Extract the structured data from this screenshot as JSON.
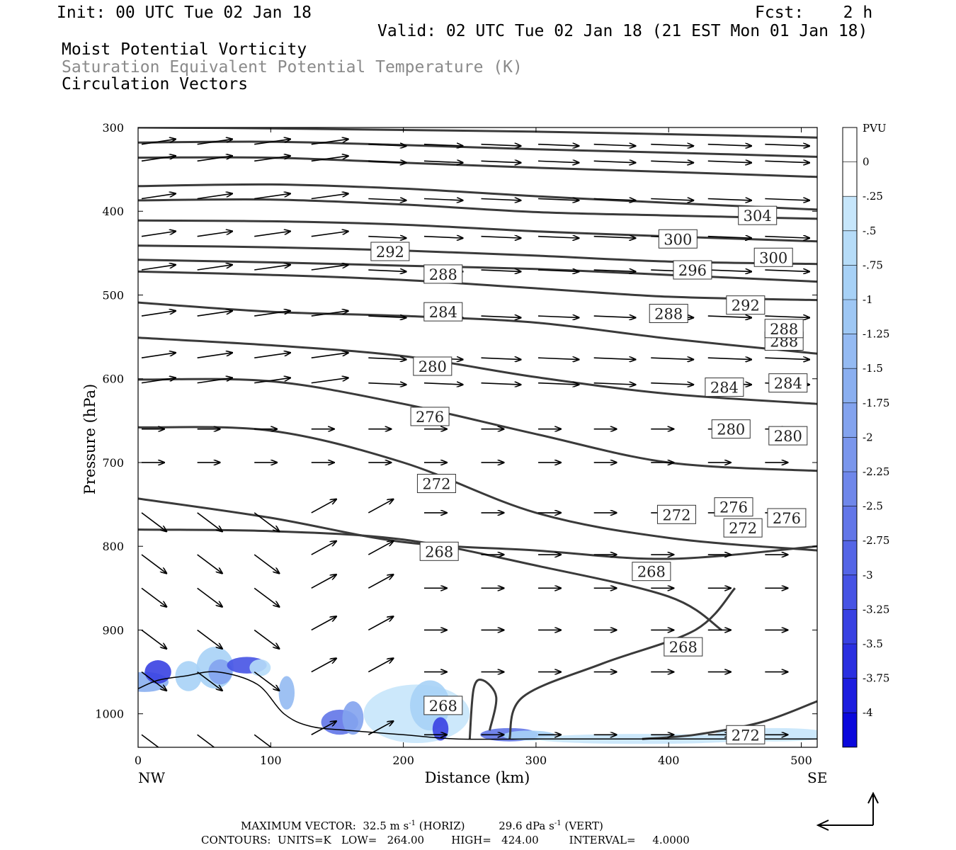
{
  "header": {
    "init": "Init: 00 UTC Tue 02 Jan 18",
    "fcst": "Fcst:    2 h",
    "valid": "Valid: 02 UTC Tue 02 Jan 18 (21 EST Mon 01 Jan 18)",
    "field1": "Moist Potential Vorticity",
    "field2": "Saturation Equivalent Potential Temperature (K)",
    "field3": "Circulation Vectors"
  },
  "footer": {
    "max_vector_label": "MAXIMUM VECTOR:",
    "max_horiz": "32.5 m s",
    "max_horiz_unit": "(HORIZ)",
    "max_vert": "29.6 dPa s",
    "max_vert_unit": "(VERT)",
    "contours": "CONTOURS:  UNITS=K   LOW=   264.00        HIGH=   424.00         INTERVAL=     4.0000"
  },
  "chart_data": {
    "type": "line",
    "title": "Moist Potential Vorticity / Saturation Equivalent Potential Temperature (K) / Circulation Vectors",
    "xlabel": "Distance (km)",
    "ylabel": "Pressure (hPa)",
    "xlim": [
      0,
      512
    ],
    "ylim": [
      300,
      1040
    ],
    "y_inverted": true,
    "x_ticks": [
      0,
      100,
      200,
      300,
      400,
      500
    ],
    "y_ticks": [
      300,
      400,
      500,
      600,
      700,
      800,
      900,
      1000
    ],
    "x_end_labels": {
      "left": "NW",
      "right": "SE"
    },
    "contour_units": "K",
    "contour_color": "#3a3a3a",
    "series": [
      {
        "name": "",
        "x": [
          0,
          100,
          200,
          300,
          400,
          512
        ],
        "y": [
          300,
          301,
          303,
          305,
          308,
          312
        ]
      },
      {
        "name": "",
        "x": [
          0,
          100,
          200,
          300,
          400,
          512
        ],
        "y": [
          318,
          317,
          321,
          326,
          330,
          335
        ]
      },
      {
        "name": "",
        "x": [
          0,
          100,
          200,
          300,
          400,
          512
        ],
        "y": [
          336,
          336,
          342,
          348,
          353,
          359
        ]
      },
      {
        "name": "",
        "x": [
          0,
          100,
          200,
          300,
          400,
          512
        ],
        "y": [
          370,
          368,
          373,
          382,
          390,
          398
        ]
      },
      {
        "name": "",
        "x": [
          0,
          100,
          200,
          300,
          400,
          512
        ],
        "y": [
          387,
          386,
          392,
          401,
          405,
          409
        ]
      },
      {
        "name": "304",
        "x": [
          0,
          100,
          200,
          300,
          400,
          512
        ],
        "y": [
          411,
          412,
          416,
          424,
          430,
          436
        ]
      },
      {
        "name": "300",
        "x": [
          0,
          100,
          200,
          300,
          400,
          512
        ],
        "y": [
          441,
          443,
          447,
          453,
          460,
          463
        ]
      },
      {
        "name": "296",
        "x": [
          0,
          100,
          200,
          300,
          400,
          512
        ],
        "y": [
          458,
          461,
          465,
          469,
          476,
          484
        ]
      },
      {
        "name": "292",
        "x": [
          0,
          100,
          200,
          300,
          400,
          512
        ],
        "y": [
          472,
          476,
          482,
          492,
          502,
          506
        ]
      },
      {
        "name": "288",
        "x": [
          0,
          100,
          200,
          300,
          400,
          512
        ],
        "y": [
          509,
          520,
          525,
          533,
          552,
          570
        ]
      },
      {
        "name": "284",
        "x": [
          0,
          100,
          200,
          300,
          400,
          512
        ],
        "y": [
          551,
          560,
          573,
          598,
          618,
          630
        ]
      },
      {
        "name": "280",
        "x": [
          0,
          100,
          200,
          300,
          400,
          512
        ],
        "y": [
          601,
          603,
          630,
          666,
          700,
          710
        ]
      },
      {
        "name": "276",
        "x": [
          0,
          100,
          200,
          300,
          400,
          512
        ],
        "y": [
          658,
          662,
          700,
          760,
          790,
          805
        ]
      },
      {
        "name": "272",
        "x": [
          0,
          100,
          200,
          300,
          400,
          512
        ],
        "y": [
          743,
          766,
          795,
          805,
          815,
          800
        ]
      },
      {
        "name": "268",
        "x": [
          0,
          100,
          200,
          300,
          400,
          440
        ],
        "y": [
          780,
          782,
          792,
          823,
          860,
          900
        ]
      },
      {
        "name": "272",
        "x": [
          380,
          420,
          470,
          512
        ],
        "y": [
          1030,
          1025,
          1010,
          985
        ]
      }
    ],
    "contour_labels": [
      "304",
      "300",
      "300",
      "292",
      "296",
      "288",
      "288",
      "292",
      "284",
      "288",
      "288",
      "280",
      "284",
      "284",
      "276",
      "280",
      "280",
      "272",
      "276",
      "276",
      "268",
      "272",
      "272",
      "268",
      "268",
      "268",
      "272"
    ],
    "wind_vector_max": {
      "horiz_m_s": 32.5,
      "vert_dPa_s": 29.6
    },
    "colorbar": {
      "units": "PVU",
      "labels": [
        "0",
        "-.25",
        "-.5",
        "-.75",
        "-1",
        "-1.25",
        "-1.5",
        "-1.75",
        "-2",
        "-2.25",
        "-2.5",
        "-2.75",
        "-3",
        "-3.25",
        "-3.5",
        "-3.75",
        "-4"
      ],
      "colors": [
        "#ffffff",
        "#ffffff",
        "#c6e6fb",
        "#b6dcf8",
        "#a7d1f6",
        "#9ec7f4",
        "#94baf2",
        "#8aaff0",
        "#83a3ee",
        "#7a96ec",
        "#6f87ea",
        "#6276e8",
        "#5465e6",
        "#4653e4",
        "#3841e2",
        "#2a2fe0",
        "#1c1ddf",
        "#0b08dc"
      ]
    },
    "terrain_surface_hpa": [
      970,
      960,
      955,
      950,
      965,
      1000,
      1015,
      1020,
      1025,
      1030,
      1030,
      1030,
      1030
    ],
    "grid": false,
    "legend": "right"
  }
}
